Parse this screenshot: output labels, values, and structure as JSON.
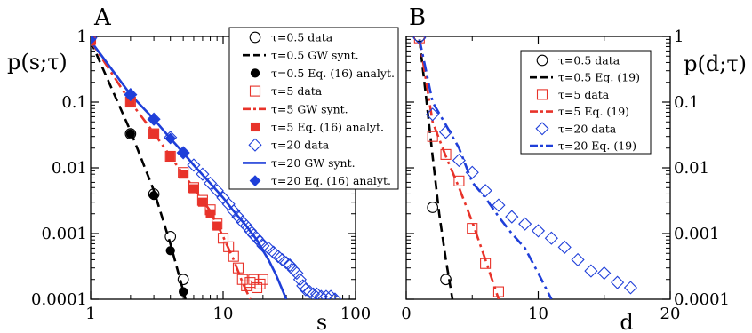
{
  "chart_data": [
    {
      "type": "scatter",
      "panel": "A",
      "ylabel": "p(s;τ)",
      "xlabel": "s",
      "xscale": "log",
      "yscale": "log",
      "xlim": [
        1,
        100
      ],
      "ylim": [
        0.0001,
        1
      ],
      "xticks": [
        {
          "v": 1,
          "label": "1"
        },
        {
          "v": 10,
          "label": "10"
        },
        {
          "v": 100,
          "label": "100"
        }
      ],
      "yticks": [
        {
          "v": 1,
          "label": "1"
        },
        {
          "v": 0.1,
          "label": "0.1"
        },
        {
          "v": 0.01,
          "label": "0.01"
        },
        {
          "v": 0.001,
          "label": "0.001"
        },
        {
          "v": 0.0001,
          "label": "0.0001"
        }
      ],
      "legend": "top-right",
      "series": [
        {
          "name": "τ=0.5 data",
          "marker": "circle-open",
          "color": "#000000",
          "x": [
            1,
            2,
            3,
            4,
            5
          ],
          "y": [
            1,
            0.033,
            0.004,
            0.0009,
            0.0002
          ]
        },
        {
          "name": "τ=0.5 GW synt.",
          "line": "dashed",
          "color": "#000000",
          "x": [
            1,
            2,
            3,
            4,
            5.2
          ],
          "y": [
            0.85,
            0.036,
            0.0045,
            0.0007,
            0.0001
          ]
        },
        {
          "name": "τ=0.5 Eq. (16) analyt.",
          "marker": "circle-filled",
          "color": "#000000",
          "x": [
            1,
            2,
            3,
            4,
            5
          ],
          "y": [
            1,
            0.033,
            0.0038,
            0.00055,
            0.00013
          ]
        },
        {
          "name": "τ=5 data",
          "marker": "square-open",
          "color": "#e8332a",
          "x": [
            1,
            2,
            3,
            4,
            5,
            6,
            7,
            8,
            9,
            10,
            11,
            12,
            13,
            14,
            15,
            16,
            17,
            18,
            19,
            20
          ],
          "y": [
            0.9,
            0.1,
            0.033,
            0.015,
            0.0085,
            0.005,
            0.0032,
            0.0023,
            0.0014,
            0.00085,
            0.00063,
            0.00045,
            0.0003,
            0.0002,
            0.00016,
            0.00018,
            0.0002,
            0.00015,
            0.00017,
            0.0002
          ]
        },
        {
          "name": "τ=5 GW synt.",
          "line": "dashdot",
          "color": "#e8332a",
          "x": [
            1,
            2,
            3,
            4,
            5,
            6,
            8,
            10,
            12,
            14,
            16
          ],
          "y": [
            0.85,
            0.1,
            0.034,
            0.015,
            0.008,
            0.005,
            0.0022,
            0.0009,
            0.0004,
            0.00018,
            0.0001
          ]
        },
        {
          "name": "τ=5 Eq. (16) analyt.",
          "marker": "square-filled",
          "color": "#e8332a",
          "x": [
            1,
            2,
            3,
            4,
            5,
            6,
            7,
            8,
            9
          ],
          "y": [
            0.85,
            0.1,
            0.033,
            0.015,
            0.008,
            0.0048,
            0.003,
            0.002,
            0.0013
          ]
        },
        {
          "name": "τ=20 data",
          "marker": "diamond-open",
          "color": "#1f3fd9",
          "x": [
            1,
            2,
            3,
            4,
            5,
            6,
            7,
            8,
            9,
            10,
            11,
            12,
            13,
            14,
            15,
            16,
            17,
            18,
            19,
            20,
            22,
            24,
            26,
            28,
            30,
            32,
            34,
            36,
            38,
            40,
            42,
            45,
            48,
            51,
            55,
            60,
            65,
            70
          ],
          "y": [
            0.95,
            0.13,
            0.055,
            0.029,
            0.017,
            0.011,
            0.008,
            0.0058,
            0.0045,
            0.0035,
            0.0028,
            0.0022,
            0.0018,
            0.0015,
            0.0013,
            0.0011,
            0.00095,
            0.00085,
            0.00075,
            0.00065,
            0.0006,
            0.00052,
            0.00045,
            0.0004,
            0.00036,
            0.00033,
            0.00028,
            0.00025,
            0.0002,
            0.00016,
            0.00014,
            0.00013,
            0.00012,
            0.00012,
            0.00011,
            0.00011,
            0.00011,
            0.0001
          ]
        },
        {
          "name": "τ=20 GW synt.",
          "line": "solid",
          "color": "#1f3fd9",
          "x": [
            1,
            2,
            3,
            4,
            5,
            6,
            8,
            10,
            12,
            15,
            18,
            20,
            22,
            25,
            28,
            30
          ],
          "y": [
            0.85,
            0.13,
            0.055,
            0.028,
            0.017,
            0.011,
            0.0058,
            0.0035,
            0.0022,
            0.0013,
            0.0008,
            0.00055,
            0.0004,
            0.00024,
            0.00014,
            0.0001
          ]
        },
        {
          "name": "τ=20 Eq. (16) analyt.",
          "marker": "diamond-filled",
          "color": "#1f3fd9",
          "x": [
            1,
            2,
            3,
            4,
            5
          ],
          "y": [
            0.9,
            0.13,
            0.055,
            0.028,
            0.017
          ]
        }
      ]
    },
    {
      "type": "scatter",
      "panel": "B",
      "ylabel": "p(d;τ)",
      "xlabel": "d",
      "xscale": "linear",
      "yscale": "log",
      "xlim": [
        0,
        20
      ],
      "ylim": [
        0.0001,
        1
      ],
      "xticks": [
        {
          "v": 0,
          "label": "0"
        },
        {
          "v": 10,
          "label": "10"
        },
        {
          "v": 20,
          "label": "20"
        }
      ],
      "yticks": [
        {
          "v": 1,
          "label": "1"
        },
        {
          "v": 0.1,
          "label": "0.1"
        },
        {
          "v": 0.01,
          "label": "0.01"
        },
        {
          "v": 0.001,
          "label": "0.001"
        },
        {
          "v": 0.0001,
          "label": "0.0001"
        }
      ],
      "legend": "top-right",
      "series": [
        {
          "name": "τ=0.5 data",
          "marker": "circle-open",
          "color": "#000000",
          "x": [
            1,
            2,
            3
          ],
          "y": [
            1,
            0.0025,
            0.0002
          ]
        },
        {
          "name": "τ=0.5 Eq. (19)",
          "line": "dashed",
          "color": "#000000",
          "x": [
            1,
            1.5,
            2,
            2.5,
            3,
            3.5
          ],
          "y": [
            0.9,
            0.12,
            0.015,
            0.002,
            0.0004,
            0.0001
          ]
        },
        {
          "name": "τ=5 data",
          "marker": "square-open",
          "color": "#e8332a",
          "x": [
            1,
            2,
            3,
            4,
            5,
            6,
            7
          ],
          "y": [
            0.95,
            0.03,
            0.016,
            0.0063,
            0.0012,
            0.00035,
            0.00013
          ]
        },
        {
          "name": "τ=5 Eq. (19)",
          "line": "dashdot",
          "color": "#e8332a",
          "x": [
            1,
            2,
            3,
            4,
            5,
            6,
            7
          ],
          "y": [
            0.9,
            0.05,
            0.015,
            0.005,
            0.0015,
            0.0004,
            0.0001
          ]
        },
        {
          "name": "τ=20 data",
          "marker": "diamond-open",
          "color": "#1f3fd9",
          "x": [
            1,
            2,
            3,
            4,
            5,
            6,
            7,
            8,
            9,
            10,
            11,
            12,
            13,
            14,
            15,
            16,
            17
          ],
          "y": [
            0.95,
            0.065,
            0.035,
            0.013,
            0.0085,
            0.0045,
            0.0027,
            0.0018,
            0.0014,
            0.0011,
            0.00085,
            0.00062,
            0.0004,
            0.00027,
            0.00025,
            0.00018,
            0.00015
          ]
        },
        {
          "name": "τ=20 Eq. (19)",
          "line": "dashdot",
          "color": "#1f3fd9",
          "x": [
            1,
            2,
            3,
            4,
            5,
            6,
            7,
            8,
            9,
            10,
            11
          ],
          "y": [
            0.9,
            0.1,
            0.045,
            0.02,
            0.006,
            0.0035,
            0.0018,
            0.001,
            0.0006,
            0.00025,
            0.0001
          ]
        }
      ]
    }
  ]
}
